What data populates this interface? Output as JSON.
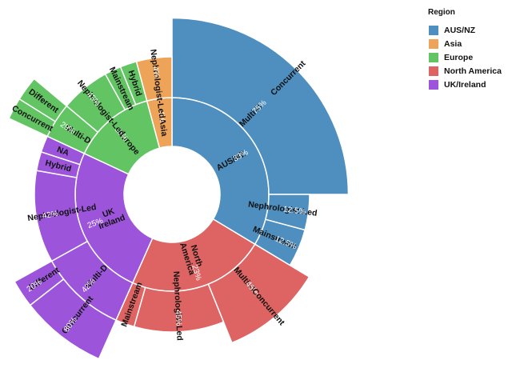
{
  "chart_data": {
    "type": "sunburst",
    "legend": {
      "title": "Region",
      "position": "top-right",
      "items": [
        {
          "name": "AUS/NZ",
          "color": "#4e8fbf"
        },
        {
          "name": "Asia",
          "color": "#eea458"
        },
        {
          "name": "Europe",
          "color": "#63c463"
        },
        {
          "name": "North America",
          "color": "#dd6462"
        },
        {
          "name": "UK/Ireland",
          "color": "#9b54da"
        }
      ]
    },
    "rings": {
      "inner": [
        {
          "key": "ausnz",
          "region": "AUS/NZ",
          "label": "AUS/NZ",
          "pct": "33%",
          "start": 0,
          "end": 121,
          "size": 1
        },
        {
          "key": "na",
          "region": "North America",
          "label": "North\nAmerica",
          "pct": "23%",
          "start": 121,
          "end": 204,
          "size": 1
        },
        {
          "key": "uk",
          "region": "UK/Ireland",
          "label": "UK\nIreland",
          "pct": "25%",
          "start": 204,
          "end": 295,
          "size": 1
        },
        {
          "key": "eu",
          "region": "Europe",
          "label": "Europe",
          "pct": "15%",
          "start": 295,
          "end": 345,
          "size": 1
        },
        {
          "key": "asia",
          "region": "Asia",
          "label": "Asia",
          "pct": "4%",
          "start": 345,
          "end": 360,
          "size": 1
        }
      ],
      "outer": [
        {
          "key": "ausnz-multid",
          "region": "AUS/NZ",
          "label": "Multi-D",
          "pct": "75%",
          "start": 0,
          "end": 90,
          "size": 1.95,
          "edge": "Concurrent"
        },
        {
          "key": "ausnz-neph",
          "region": "AUS/NZ",
          "label": "Nephrologist-Led",
          "pct": "12.5%",
          "start": 90,
          "end": 105,
          "size": 1
        },
        {
          "key": "ausnz-main",
          "region": "AUS/NZ",
          "label": "Mainstream",
          "pct": "12.5%",
          "start": 105,
          "end": 121,
          "size": 1
        },
        {
          "key": "na-multid",
          "region": "North America",
          "label": "Multi-D",
          "pct": "45%",
          "start": 121,
          "end": 158,
          "size": 1.55,
          "edge": "Concurrent"
        },
        {
          "key": "na-neph",
          "region": "North America",
          "label": "Nephrologist-Led",
          "pct": "45%",
          "start": 158,
          "end": 196,
          "size": 1
        },
        {
          "key": "na-main",
          "region": "North America",
          "label": "Mainstream",
          "pct": "",
          "start": 196,
          "end": 204,
          "size": 1
        },
        {
          "key": "uk-multid",
          "region": "UK/Ireland",
          "label": "Multi-D",
          "pct": "42%",
          "start": 204,
          "end": 241,
          "size": 1
        },
        {
          "key": "uk-neph",
          "region": "UK/Ireland",
          "label": "Nephrologist-Led",
          "pct": "42%",
          "start": 241,
          "end": 280,
          "size": 1
        },
        {
          "key": "uk-hybrid",
          "region": "UK/Ireland",
          "label": "Hybrid",
          "pct": "",
          "start": 280,
          "end": 288,
          "size": 1
        },
        {
          "key": "uk-na",
          "region": "UK/Ireland",
          "label": "NA",
          "pct": "",
          "start": 288,
          "end": 295,
          "size": 1
        },
        {
          "key": "eu-multid",
          "region": "Europe",
          "label": "Multi-D",
          "pct": "29%",
          "start": 295,
          "end": 310,
          "size": 1
        },
        {
          "key": "eu-neph",
          "region": "Europe",
          "label": "Nephrologist-Led",
          "pct": "43%",
          "start": 310,
          "end": 331,
          "size": 1
        },
        {
          "key": "eu-main",
          "region": "Europe",
          "label": "Mainstream",
          "pct": "",
          "start": 331,
          "end": 338,
          "size": 1
        },
        {
          "key": "eu-hybrid",
          "region": "Europe",
          "label": "Hybrid",
          "pct": "",
          "start": 338,
          "end": 345,
          "size": 1
        },
        {
          "key": "asia-neph",
          "region": "Asia",
          "label": "Nephrologist-Led",
          "pct": "4%",
          "start": 345,
          "end": 360,
          "size": 1
        }
      ],
      "third": [
        {
          "key": "uk-concurrent",
          "region": "UK/Ireland",
          "label": "Concurrent",
          "pct": "80%",
          "start": 204,
          "end": 232
        },
        {
          "key": "uk-different",
          "region": "UK/Ireland",
          "label": "Different",
          "pct": "20%",
          "start": 232,
          "end": 241
        },
        {
          "key": "eu-concurrent",
          "region": "Europe",
          "label": "Concurrent",
          "pct": "",
          "start": 295,
          "end": 302
        },
        {
          "key": "eu-different",
          "region": "Europe",
          "label": "Different",
          "pct": "",
          "start": 302,
          "end": 310
        }
      ]
    }
  }
}
